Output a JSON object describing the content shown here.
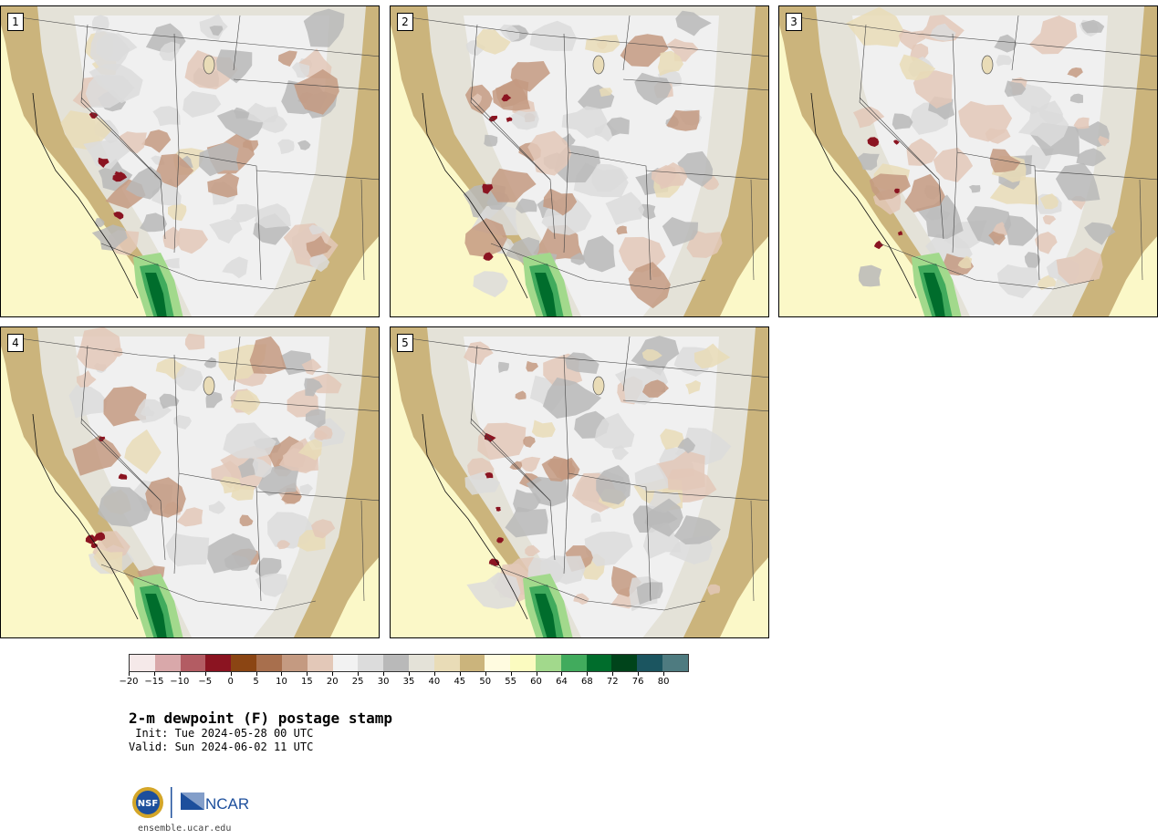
{
  "panels": [
    {
      "label": "1",
      "seed": 11
    },
    {
      "label": "2",
      "seed": 23
    },
    {
      "label": "3",
      "seed": 37
    },
    {
      "label": "4",
      "seed": 41
    },
    {
      "label": "5",
      "seed": 59
    }
  ],
  "colorbar": {
    "ticks": [
      "−20",
      "−15",
      "−10",
      "−5",
      "0",
      "5",
      "10",
      "15",
      "20",
      "25",
      "30",
      "35",
      "40",
      "45",
      "50",
      "55",
      "60",
      "64",
      "68",
      "72",
      "76",
      "80"
    ],
    "colors": [
      "#f5e9e9",
      "#d9a8aa",
      "#b35c63",
      "#8b1421",
      "#8b4513",
      "#a86f4d",
      "#c49a81",
      "#e3c8b8",
      "#f2f2f2",
      "#dcdcdc",
      "#b9b9b9",
      "#e4e2d8",
      "#e9dcb7",
      "#cbb47c",
      "#fffbe0",
      "#fbfbc0",
      "#a2d98c",
      "#41ab5d",
      "#006d2c",
      "#00441b",
      "#1b5560",
      "#4e7b80"
    ]
  },
  "title": "2-m dewpoint (F) postage stamp",
  "init": " Init: Tue 2024-05-28 00 UTC",
  "valid": "Valid: Sun 2024-06-02 11 UTC",
  "logos": {
    "nsf": "NSF",
    "ncar": "NCAR"
  },
  "site": "ensemble.ucar.edu"
}
